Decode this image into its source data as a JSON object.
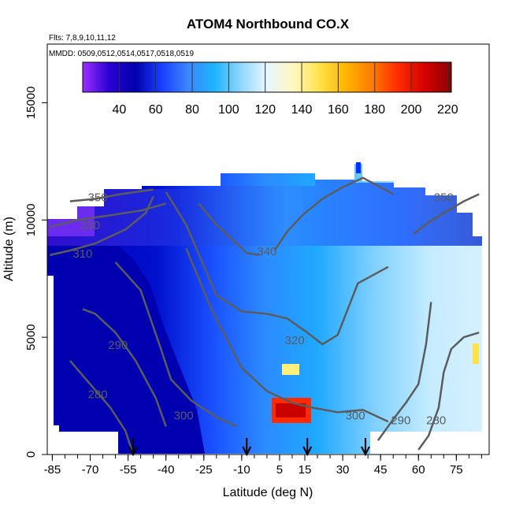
{
  "chart_data": {
    "type": "heatmap",
    "title": "ATOM4 Northbound CO.X",
    "subtitle_flights": "Flts: 7,8,9,10,11,12",
    "subtitle_dates": "MMDD: 0509,0512,0514,0517,0518,0519",
    "xlabel": "Latitude (deg N)",
    "ylabel": "Altitude (m)",
    "xlim": [
      -87,
      88
    ],
    "ylim": [
      0,
      17500
    ],
    "x_ticks": [
      -85,
      -70,
      -55,
      -40,
      -25,
      -10,
      5,
      15,
      30,
      45,
      60,
      75
    ],
    "y_ticks": [
      0,
      5000,
      10000,
      15000
    ],
    "colorbar": {
      "range": [
        20,
        222
      ],
      "ticks": [
        40,
        60,
        80,
        100,
        120,
        140,
        160,
        180,
        200,
        220
      ],
      "colors": [
        "#9b30ff",
        "#2a00d5",
        "#0000aa",
        "#1a3fff",
        "#3b86ff",
        "#1eb4ff",
        "#8fd6ff",
        "#e8f6ff",
        "#fff8c0",
        "#ffe24a",
        "#ffb400",
        "#ff7a00",
        "#ff2a00",
        "#d40000",
        "#8b0000"
      ]
    },
    "ship_markers_latitude": [
      -53,
      -8,
      16,
      39
    ],
    "contours": [
      {
        "level": "350",
        "points": [
          [
            -78,
            10800
          ],
          [
            -68,
            10900
          ],
          [
            -58,
            11100
          ],
          [
            -45,
            11300
          ]
        ]
      },
      {
        "level": "330",
        "points": [
          [
            -86,
            9700
          ],
          [
            -75,
            10000
          ],
          [
            -62,
            10200
          ],
          [
            -50,
            10400
          ],
          [
            -40,
            10700
          ]
        ]
      },
      {
        "level": "310",
        "points": [
          [
            -86,
            8500
          ],
          [
            -78,
            8700
          ],
          [
            -68,
            9000
          ],
          [
            -56,
            9600
          ],
          [
            -48,
            10300
          ],
          [
            -45,
            11000
          ]
        ]
      },
      {
        "level": "290",
        "points": [
          [
            -73,
            6200
          ],
          [
            -68,
            6000
          ],
          [
            -60,
            5200
          ],
          [
            -52,
            4000
          ],
          [
            -44,
            2400
          ],
          [
            -40,
            1200
          ]
        ]
      },
      {
        "level": "280",
        "points": [
          [
            -78,
            4000
          ],
          [
            -70,
            3000
          ],
          [
            -62,
            2000
          ],
          [
            -56,
            1000
          ],
          [
            -53,
            0
          ]
        ]
      },
      {
        "level": "300",
        "points": [
          [
            -60,
            8200
          ],
          [
            -50,
            7000
          ],
          [
            -42,
            4500
          ],
          [
            -38,
            3200
          ],
          [
            -30,
            2300
          ],
          [
            -20,
            1600
          ],
          [
            -12,
            1200
          ]
        ]
      },
      {
        "level": "340",
        "points": [
          [
            -27,
            10700
          ],
          [
            -20,
            9800
          ],
          [
            -14,
            9200
          ],
          [
            -8,
            8600
          ],
          [
            -3,
            8500
          ]
        ]
      },
      {
        "level": "340",
        "points": [
          [
            3,
            8700
          ],
          [
            8,
            9500
          ],
          [
            14,
            10200
          ],
          [
            22,
            10900
          ],
          [
            30,
            11400
          ],
          [
            38,
            11800
          ],
          [
            50,
            11100
          ]
        ]
      },
      {
        "level": "320",
        "points": [
          [
            -40,
            11200
          ],
          [
            -32,
            9800
          ],
          [
            -26,
            8300
          ],
          [
            -20,
            6800
          ],
          [
            -10,
            6100
          ],
          [
            0,
            6000
          ],
          [
            8,
            5800
          ],
          [
            16,
            5200
          ],
          [
            22,
            4700
          ],
          [
            28,
            5100
          ],
          [
            36,
            7300
          ],
          [
            48,
            8000
          ]
        ]
      },
      {
        "level": "300",
        "points": [
          [
            -32,
            8800
          ],
          [
            -22,
            6200
          ],
          [
            -10,
            3700
          ],
          [
            0,
            2700
          ],
          [
            10,
            2200
          ],
          [
            18,
            2000
          ],
          [
            28,
            1800
          ],
          [
            38,
            1900
          ],
          [
            48,
            1400
          ]
        ]
      },
      {
        "level": "290",
        "points": [
          [
            44,
            600
          ],
          [
            50,
            1500
          ],
          [
            55,
            2200
          ],
          [
            60,
            3000
          ],
          [
            63,
            4700
          ],
          [
            65,
            6500
          ]
        ]
      },
      {
        "level": "280",
        "points": [
          [
            60,
            200
          ],
          [
            64,
            800
          ],
          [
            68,
            2000
          ],
          [
            70,
            3500
          ],
          [
            73,
            4500
          ],
          [
            78,
            5000
          ],
          [
            84,
            5200
          ]
        ]
      },
      {
        "level": "350",
        "points": [
          [
            58,
            9400
          ],
          [
            64,
            9900
          ],
          [
            70,
            10300
          ],
          [
            78,
            10800
          ],
          [
            84,
            11100
          ]
        ]
      }
    ],
    "contour_labels": [
      {
        "text": "350",
        "x": -67,
        "y": 10800
      },
      {
        "text": "330",
        "x": -70,
        "y": 9600
      },
      {
        "text": "310",
        "x": -73,
        "y": 8400
      },
      {
        "text": "290",
        "x": -59,
        "y": 4500
      },
      {
        "text": "280",
        "x": -67,
        "y": 2400
      },
      {
        "text": "300",
        "x": -33,
        "y": 1500
      },
      {
        "text": "340",
        "x": 0,
        "y": 8500
      },
      {
        "text": "320",
        "x": 11,
        "y": 4700
      },
      {
        "text": "300",
        "x": 35,
        "y": 1500
      },
      {
        "text": "290",
        "x": 53,
        "y": 1300
      },
      {
        "text": "280",
        "x": 67,
        "y": 1300
      },
      {
        "text": "350",
        "x": 70,
        "y": 10800
      }
    ]
  }
}
